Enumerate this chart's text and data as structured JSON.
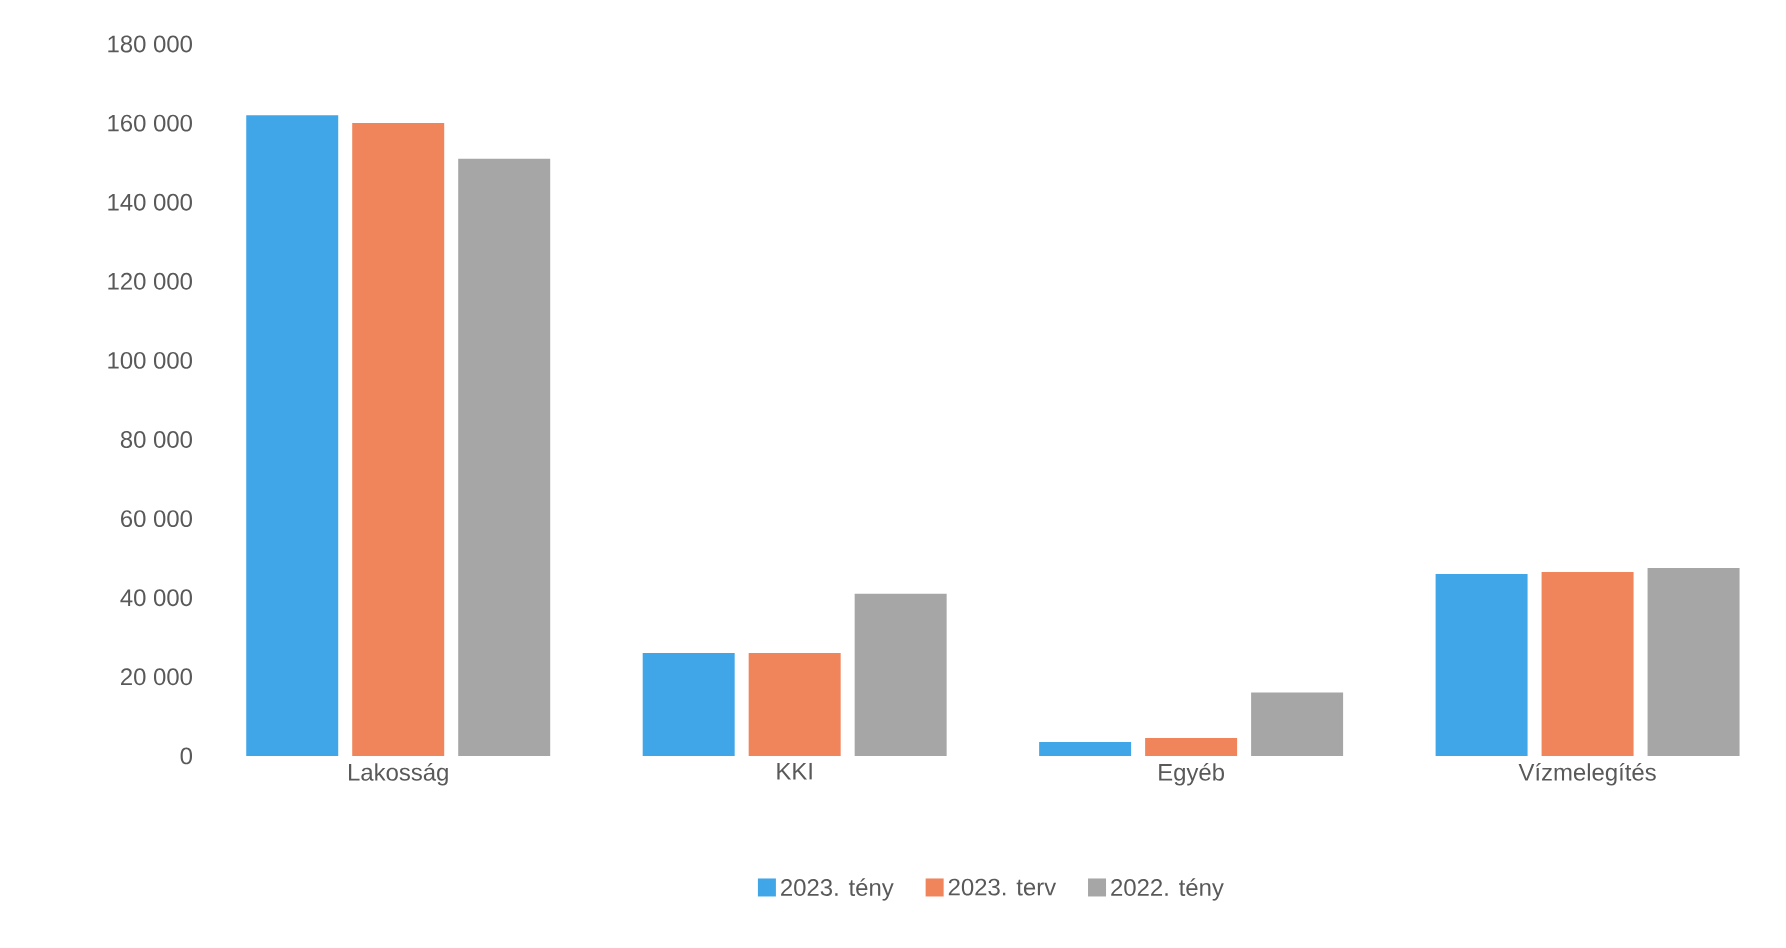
{
  "chart_data": {
    "type": "bar",
    "categories": [
      "Lakosság",
      "KKI",
      "Egyéb",
      "Vízmelegítés"
    ],
    "series": [
      {
        "name": "2023. tény",
        "color": "#41a6e8",
        "values": [
          162000,
          26000,
          3500,
          46000
        ]
      },
      {
        "name": "2023. terv",
        "color": "#f0845a",
        "values": [
          160000,
          26000,
          4500,
          46500
        ]
      },
      {
        "name": "2022. tény",
        "color": "#a6a6a6",
        "values": [
          151000,
          41000,
          16000,
          47500
        ]
      }
    ],
    "ylim": [
      0,
      180000
    ],
    "yticks": [
      {
        "value": 0,
        "label": "0"
      },
      {
        "value": 20000,
        "label": "20 000"
      },
      {
        "value": 40000,
        "label": "40 000"
      },
      {
        "value": 60000,
        "label": "60 000"
      },
      {
        "value": 80000,
        "label": "80 000"
      },
      {
        "value": 100000,
        "label": "100 000"
      },
      {
        "value": 120000,
        "label": "120 000"
      },
      {
        "value": 140000,
        "label": "140 000"
      },
      {
        "value": 160000,
        "label": "160 000"
      },
      {
        "value": 180000,
        "label": "180 000"
      }
    ],
    "grid": false,
    "legend": "bottom"
  }
}
